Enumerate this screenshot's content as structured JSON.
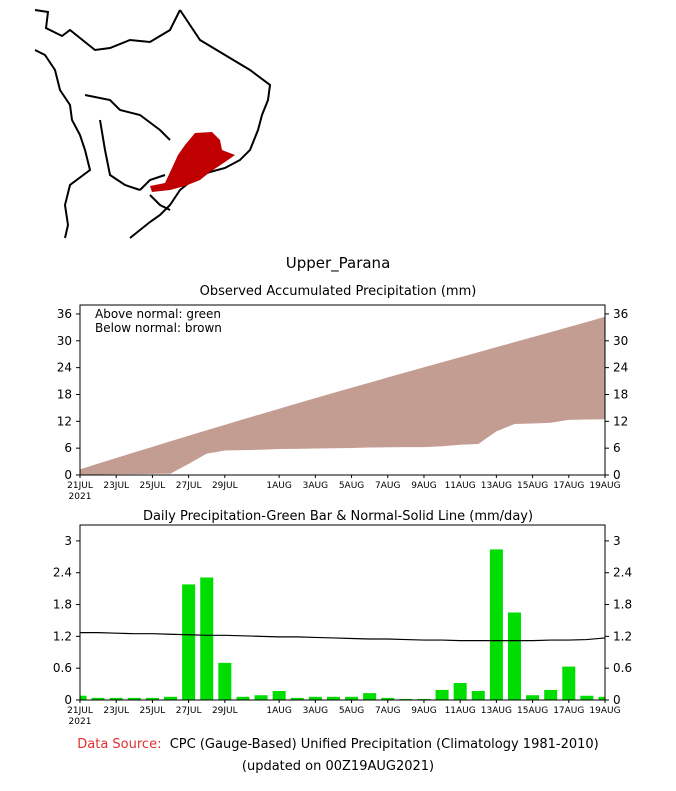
{
  "region": "Upper_Parana",
  "colors": {
    "observed_bar": "#00dd00",
    "deficit": "#c49d92",
    "region_highlight": "#c00000"
  },
  "footer": {
    "source_label": "Data Source:",
    "source_text": "CPC (Gauge-Based) Unified Precipitation (Climatology 1981-2010)",
    "updated": "(updated on 00Z19AUG2021)"
  },
  "chart_data": [
    {
      "type": "area",
      "title": "Observed Accumulated Precipitation (mm)",
      "legend": [
        "Above normal: green",
        "Below normal: brown"
      ],
      "legend_placement": "top-left",
      "ylim": [
        0,
        38
      ],
      "yticks": [
        "0",
        "6",
        "12",
        "18",
        "24",
        "30",
        "36"
      ],
      "xtick_labels": [
        "21JUL",
        "23JUL",
        "25JUL",
        "27JUL",
        "29JUL",
        "1AUG",
        "3AUG",
        "5AUG",
        "7AUG",
        "9AUG",
        "11AUG",
        "13AUG",
        "15AUG",
        "17AUG",
        "19AUG"
      ],
      "year_label": "2021",
      "series_note": "accumulated from daily series of second chart"
    },
    {
      "type": "bar",
      "title": "Daily Precipitation-Green Bar & Normal-Solid Line (mm/day)",
      "ylim": [
        0,
        3.3
      ],
      "yticks": [
        "0",
        "0.6",
        "1.2",
        "1.8",
        "2.4",
        "3"
      ],
      "xtick_labels": [
        "21JUL",
        "23JUL",
        "25JUL",
        "27JUL",
        "29JUL",
        "1AUG",
        "3AUG",
        "5AUG",
        "7AUG",
        "9AUG",
        "11AUG",
        "13AUG",
        "15AUG",
        "17AUG",
        "19AUG"
      ],
      "year_label": "2021",
      "dates": [
        "21JUL",
        "22JUL",
        "23JUL",
        "24JUL",
        "25JUL",
        "26JUL",
        "27JUL",
        "28JUL",
        "29JUL",
        "30JUL",
        "31JUL",
        "1AUG",
        "2AUG",
        "3AUG",
        "4AUG",
        "5AUG",
        "6AUG",
        "7AUG",
        "8AUG",
        "9AUG",
        "10AUG",
        "11AUG",
        "12AUG",
        "13AUG",
        "14AUG",
        "15AUG",
        "16AUG",
        "17AUG",
        "18AUG",
        "19AUG"
      ],
      "observed": [
        0.08,
        0.04,
        0.04,
        0.04,
        0.04,
        0.06,
        2.18,
        2.31,
        0.7,
        0.06,
        0.09,
        0.17,
        0.04,
        0.06,
        0.06,
        0.06,
        0.13,
        0.04,
        0.02,
        0.02,
        0.19,
        0.32,
        0.17,
        2.84,
        1.65,
        0.09,
        0.19,
        0.63,
        0.08,
        0.06
      ],
      "normal": [
        1.27,
        1.27,
        1.26,
        1.25,
        1.25,
        1.24,
        1.23,
        1.22,
        1.22,
        1.21,
        1.2,
        1.19,
        1.19,
        1.18,
        1.17,
        1.16,
        1.15,
        1.15,
        1.14,
        1.13,
        1.13,
        1.12,
        1.12,
        1.12,
        1.12,
        1.12,
        1.13,
        1.13,
        1.14,
        1.17
      ]
    }
  ]
}
